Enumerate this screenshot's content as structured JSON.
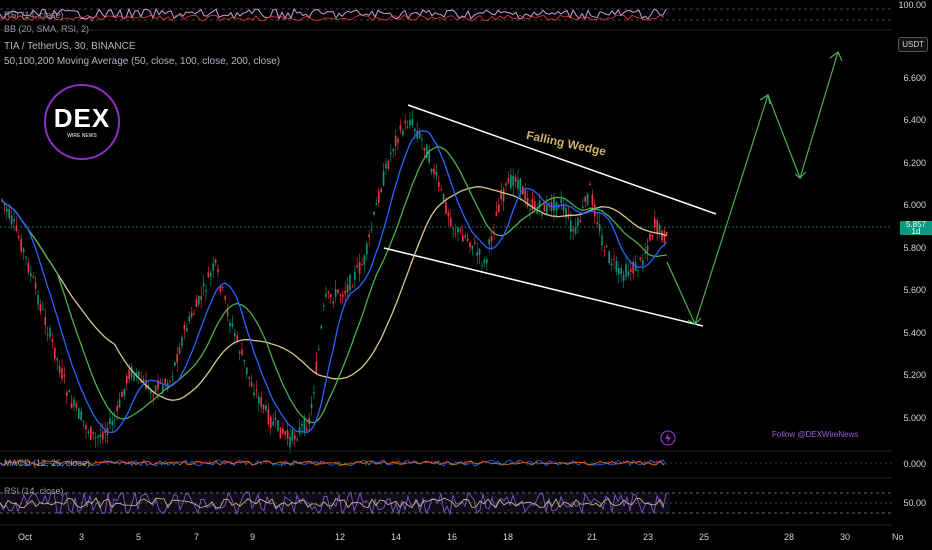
{
  "top_pane": {
    "rsi_label": "RSI (14, close)",
    "bb_label": "BB (20, SMA, RSI, 2)",
    "level_value": "100.00"
  },
  "legend": {
    "symbol_line": "TIA / TetherUS, 30, BINANCE",
    "ma_line": "50,100,200 Moving Average (50, close, 100, close, 200, close)"
  },
  "currency_button": "USDT",
  "price_axis": [
    "6.600",
    "6.400",
    "6.200",
    "6.000",
    "5.800",
    "5.600",
    "5.400",
    "5.200",
    "5.000"
  ],
  "current_price": {
    "value": "5.857",
    "sub": "1d"
  },
  "annotation": {
    "pattern_label": "Falling Wedge"
  },
  "logo": {
    "brand": "DEX",
    "tagline": "WIRE NEWS"
  },
  "follow_text": "Follow @DEXWireNews",
  "macd_pane": {
    "label": "MACD (12, 26, close)",
    "value": "0.000"
  },
  "rsi_pane": {
    "label": "RSI (14, close)",
    "value": "50.00"
  },
  "time_axis": [
    "Oct",
    "3",
    "5",
    "7",
    "9",
    "12",
    "14",
    "16",
    "18",
    "21",
    "23",
    "25",
    "28",
    "30",
    "No"
  ],
  "colors": {
    "ma50": "#2962ff",
    "ma100": "#4caf50",
    "ma200": "#d8c68a",
    "projection": "#4caf50",
    "wedge": "#ffffff",
    "up": "#089981",
    "down": "#f23645"
  }
}
